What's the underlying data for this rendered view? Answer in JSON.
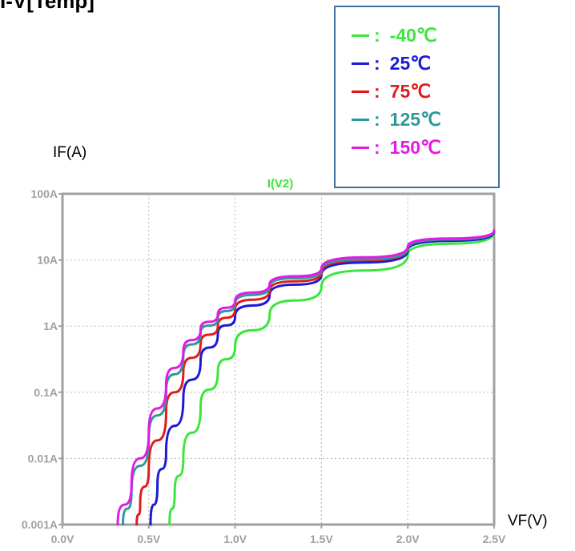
{
  "title": "I-V[Temp]",
  "ylabel_text": "IF(A)",
  "xlabel_text": "VF(V)",
  "plot_label": "I(V2)",
  "colors": {
    "plot_label": "#39e639",
    "axis": "#a0a0a0",
    "tick_text": "#a0a0a0",
    "grid": "#b4b4b4",
    "legend_border": "#41719c"
  },
  "legend": {
    "items": [
      {
        "label": "-40℃",
        "color": "#39e639"
      },
      {
        "label": "25℃",
        "color": "#1a1ad6"
      },
      {
        "label": "75℃",
        "color": "#e01b1b"
      },
      {
        "label": "125℃",
        "color": "#2e9999"
      },
      {
        "label": "150℃",
        "color": "#e619e6"
      }
    ]
  },
  "chart_data": {
    "type": "line",
    "title": "I-V[Temp]",
    "xlabel": "VF(V)",
    "ylabel": "IF(A)",
    "xlim": [
      0,
      2.5
    ],
    "ylim": [
      0.001,
      100
    ],
    "yscale": "log",
    "grid": true,
    "legend_position": "top-right",
    "x_ticks": [
      "0.0V",
      "0.5V",
      "1.0V",
      "1.5V",
      "2.0V",
      "2.5V"
    ],
    "y_ticks": [
      "0.001A",
      "0.01A",
      "0.1A",
      "1A",
      "10A",
      "100A"
    ],
    "series": [
      {
        "name": "-40℃",
        "color": "#39e639",
        "x": [
          0.62,
          0.65,
          0.7,
          0.8,
          0.9,
          1.0,
          1.2,
          1.5,
          2.0,
          2.5
        ],
        "y": [
          0.001,
          0.003,
          0.01,
          0.06,
          0.2,
          0.5,
          1.5,
          4,
          12,
          26
        ]
      },
      {
        "name": "25℃",
        "color": "#1a1ad6",
        "x": [
          0.51,
          0.55,
          0.6,
          0.7,
          0.8,
          0.9,
          1.0,
          1.2,
          1.5,
          2.0,
          2.5
        ],
        "y": [
          0.001,
          0.004,
          0.012,
          0.08,
          0.3,
          0.75,
          1.4,
          3,
          6,
          14,
          27
        ]
      },
      {
        "name": "75℃",
        "color": "#e01b1b",
        "x": [
          0.43,
          0.45,
          0.5,
          0.6,
          0.7,
          0.8,
          0.9,
          1.0,
          1.2,
          1.5,
          2.0,
          2.5
        ],
        "y": [
          0.001,
          0.002,
          0.007,
          0.05,
          0.2,
          0.55,
          1.0,
          1.8,
          3.5,
          6.5,
          15,
          28
        ]
      },
      {
        "name": "125℃",
        "color": "#2e9999",
        "x": [
          0.35,
          0.4,
          0.5,
          0.6,
          0.7,
          0.8,
          0.9,
          1.0,
          1.2,
          1.5,
          2.0,
          2.5
        ],
        "y": [
          0.001,
          0.003,
          0.02,
          0.1,
          0.35,
          0.8,
          1.3,
          2.2,
          4,
          7,
          15,
          28
        ]
      },
      {
        "name": "150℃",
        "color": "#e619e6",
        "x": [
          0.32,
          0.4,
          0.5,
          0.6,
          0.7,
          0.8,
          0.9,
          1.0,
          1.2,
          1.5,
          2.0,
          2.5
        ],
        "y": [
          0.001,
          0.004,
          0.025,
          0.13,
          0.42,
          0.9,
          1.5,
          2.4,
          4.3,
          7.5,
          16,
          28
        ]
      }
    ]
  }
}
